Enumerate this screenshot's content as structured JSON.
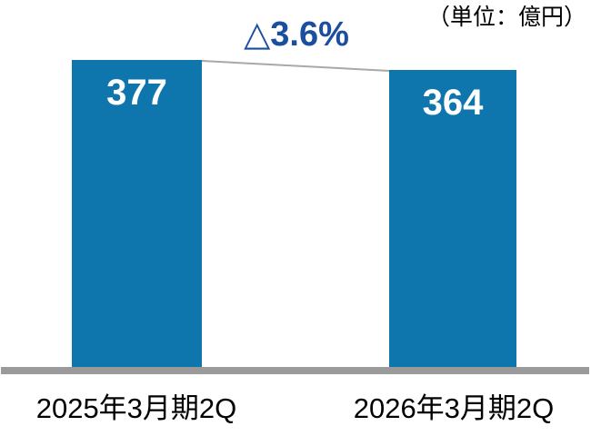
{
  "chart_data": {
    "type": "bar",
    "categories": [
      "2025年3月期2Q",
      "2026年3月期2Q"
    ],
    "values": [
      377,
      364
    ],
    "unit_label": "（単位：億円）",
    "annotation": "△3.6%",
    "xlabel": "",
    "ylabel": "",
    "ylim": [
      0,
      420
    ],
    "grid": false,
    "legend": false,
    "colors": {
      "background": "#FFFFFF",
      "bar": "#0E76AC",
      "value_text": "#FFFFFF",
      "annotation_text": "#1B4E9E",
      "axis_line": "#9A9A9A",
      "connector_line": "#A9A9A9",
      "category_text": "#000000",
      "unit_text": "#000000"
    }
  }
}
